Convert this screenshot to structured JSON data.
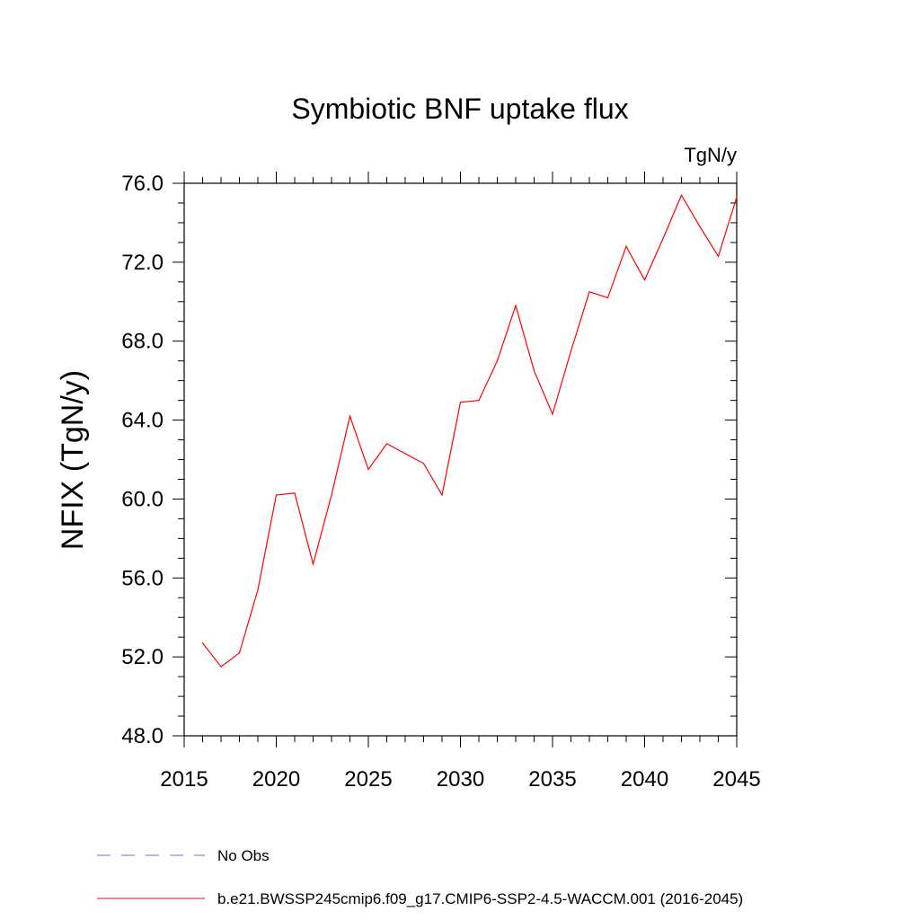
{
  "chart_data": {
    "type": "line",
    "title": "Symbiotic BNF uptake flux",
    "units": "TgN/y",
    "xlabel": "",
    "ylabel": "NFIX  (TgN/y)",
    "xlim": [
      2015,
      2045
    ],
    "ylim": [
      48.0,
      76.0
    ],
    "xticks": [
      2015,
      2020,
      2025,
      2030,
      2035,
      2040,
      2045
    ],
    "yticks": [
      "48.0",
      "52.0",
      "56.0",
      "60.0",
      "64.0",
      "68.0",
      "72.0",
      "76.0"
    ],
    "series": [
      {
        "name": "b.e21.BWSSP245cmip6.f09_g17.CMIP6-SSP2-4.5-WACCM.001 (2016-2045)",
        "color": "#ff0000",
        "x": [
          2016,
          2017,
          2018,
          2019,
          2020,
          2021,
          2022,
          2023,
          2024,
          2025,
          2026,
          2027,
          2028,
          2029,
          2030,
          2031,
          2032,
          2033,
          2034,
          2035,
          2036,
          2037,
          2038,
          2039,
          2040,
          2041,
          2042,
          2043,
          2044,
          2045
        ],
        "y": [
          52.7,
          51.5,
          52.2,
          55.4,
          60.2,
          60.3,
          56.7,
          60.2,
          64.2,
          61.5,
          62.8,
          62.3,
          61.8,
          60.2,
          64.9,
          65.0,
          67.0,
          69.8,
          66.5,
          64.3,
          67.5,
          70.5,
          70.2,
          72.8,
          71.1,
          73.2,
          75.4,
          73.8,
          72.3,
          75.3
        ]
      }
    ],
    "legend": [
      {
        "label": "No Obs",
        "style": "dashed",
        "color": "#7b6fc8"
      },
      {
        "label": "b.e21.BWSSP245cmip6.f09_g17.CMIP6-SSP2-4.5-WACCM.001 (2016-2045)",
        "style": "solid",
        "color": "#ff0000"
      }
    ]
  }
}
